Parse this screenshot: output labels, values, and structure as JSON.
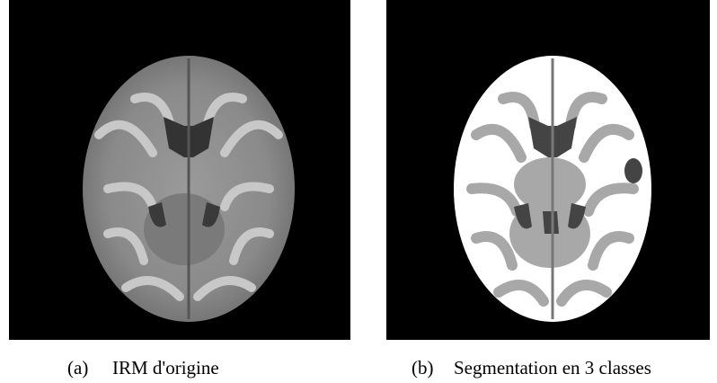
{
  "figures": [
    {
      "label": "(a)",
      "caption": "IRM d'origine"
    },
    {
      "label": "(b)",
      "caption": "Segmentation en 3 classes"
    }
  ]
}
